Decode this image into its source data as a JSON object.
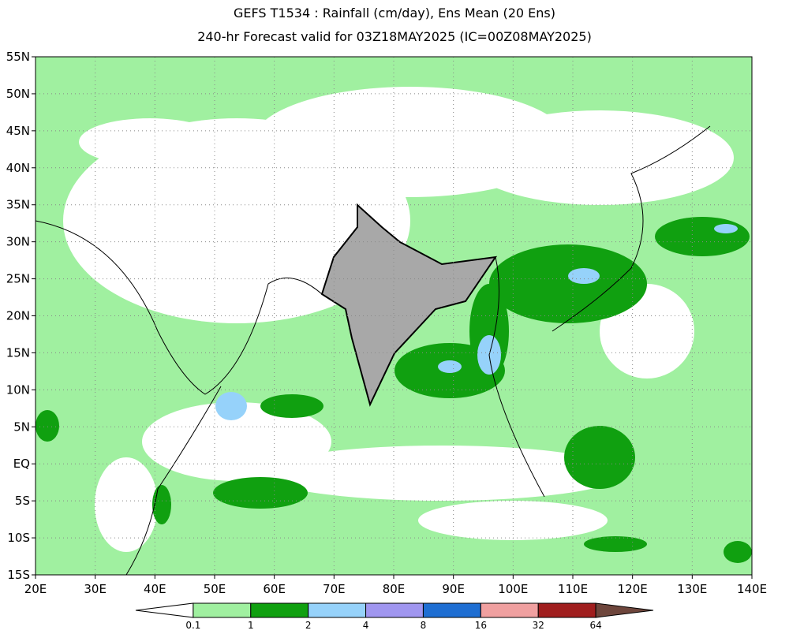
{
  "header": {
    "title": "GEFS T1534 : Rainfall (cm/day), Ens Mean (20 Ens)",
    "subtitle": "240-hr Forecast valid for 03Z18MAY2025 (IC=00Z08MAY2025)"
  },
  "map": {
    "x_ticks": [
      "20E",
      "30E",
      "40E",
      "50E",
      "60E",
      "70E",
      "80E",
      "90E",
      "100E",
      "110E",
      "120E",
      "130E",
      "140E"
    ],
    "y_ticks": [
      "55N",
      "50N",
      "45N",
      "40N",
      "35N",
      "30N",
      "25N",
      "20N",
      "15N",
      "10N",
      "5N",
      "EQ",
      "5S",
      "10S",
      "15S"
    ]
  },
  "colorbar": {
    "colors": [
      "#ffffff",
      "#a0f0a0",
      "#10a010",
      "#96d2fa",
      "#a096f0",
      "#1e6ed2",
      "#f0a0a0",
      "#a01e1e",
      "#6e463c"
    ],
    "labels": [
      0.1,
      1,
      2,
      4,
      8,
      16,
      32,
      64
    ]
  }
}
